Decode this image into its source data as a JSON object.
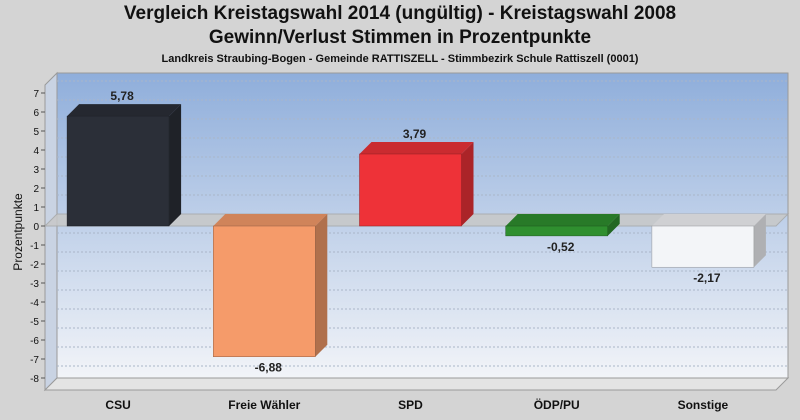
{
  "header": {
    "title": "Vergleich Kreistagswahl 2014 (ungültig) - Kreistagswahl 2008",
    "subtitle": "Gewinn/Verlust Stimmen in Prozentpunkte",
    "caption": "Landkreis Straubing-Bogen - Gemeinde RATTISZELL - Stimmbezirk Schule Rattiszell (0001)"
  },
  "chart_data": {
    "type": "bar",
    "title": "Vergleich Kreistagswahl 2014 (ungültig) - Kreistagswahl 2008",
    "subtitle": "Gewinn/Verlust Stimmen in Prozentpunkte",
    "xlabel": "",
    "ylabel": "Prozentpunkte",
    "ylim": [
      -8,
      7
    ],
    "yticks": [
      7,
      6,
      5,
      4,
      3,
      2,
      1,
      0,
      -1,
      -2,
      -3,
      -4,
      -5,
      -6,
      -7,
      -8
    ],
    "grid": true,
    "legend": "none",
    "categories": [
      "CSU",
      "Freie Wähler",
      "SPD",
      "ÖDP/PU",
      "Sonstige"
    ],
    "values": [
      5.78,
      -6.88,
      3.79,
      -0.52,
      -2.17
    ],
    "labels": [
      "5,78",
      "-6,88",
      "3,79",
      "-0,52",
      "-2,17"
    ],
    "colors": [
      "#2b2f38",
      "#f59b6a",
      "#ee3238",
      "#2f8f2f",
      "#f3f5f8"
    ]
  }
}
